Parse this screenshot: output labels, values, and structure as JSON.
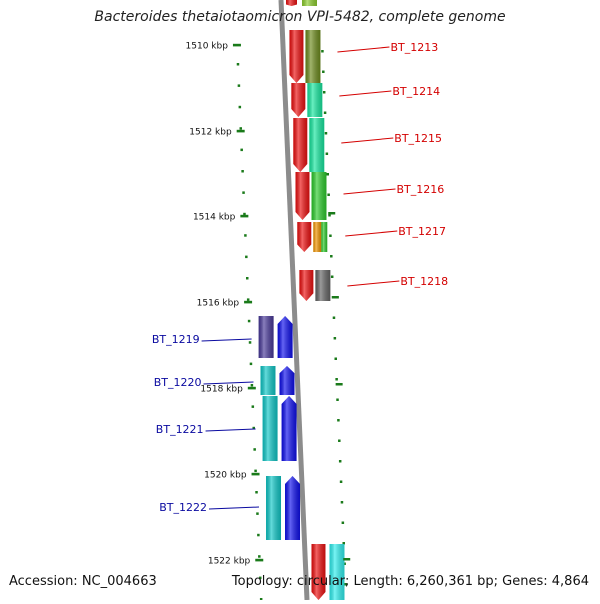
{
  "title": "Bacteroides thetaiotaomicron VPI-5482, complete genome",
  "footer": {
    "accession": "Accession: NC_004663",
    "summary": "Topology: circular; Length: 6,260,361 bp; Genes: 4,864"
  },
  "colors": {
    "backbone": "#8c8c8c",
    "tick": "#1a7a1a",
    "label_right": "#d40000",
    "label_left": "#0a0aa0",
    "strand_red": "#ee1111",
    "strand_blue": "#1010ee"
  },
  "scale_labels": [
    "1510 kbp",
    "1512 kbp",
    "1514 kbp",
    "1516 kbp",
    "1518 kbp",
    "1520 kbp",
    "1522 kbp"
  ],
  "genes_right": [
    {
      "name": "BT_1213",
      "color": "#6e8c1e"
    },
    {
      "name": "BT_1214",
      "color": "#18e8a0"
    },
    {
      "name": "BT_1215",
      "color": "#18e8a0"
    },
    {
      "name": "BT_1216",
      "color": "#2ecc2e"
    },
    {
      "name": "BT_1217",
      "color": "#f29400"
    },
    {
      "name": "BT_1218",
      "color": "#666666"
    }
  ],
  "genes_left": [
    {
      "name": "BT_1219",
      "color": "#4a3a9a"
    },
    {
      "name": "BT_1220",
      "color": "#10c8c8"
    },
    {
      "name": "BT_1221",
      "color": "#10c8c8"
    },
    {
      "name": "BT_1222",
      "color": "#10c8c8"
    }
  ]
}
